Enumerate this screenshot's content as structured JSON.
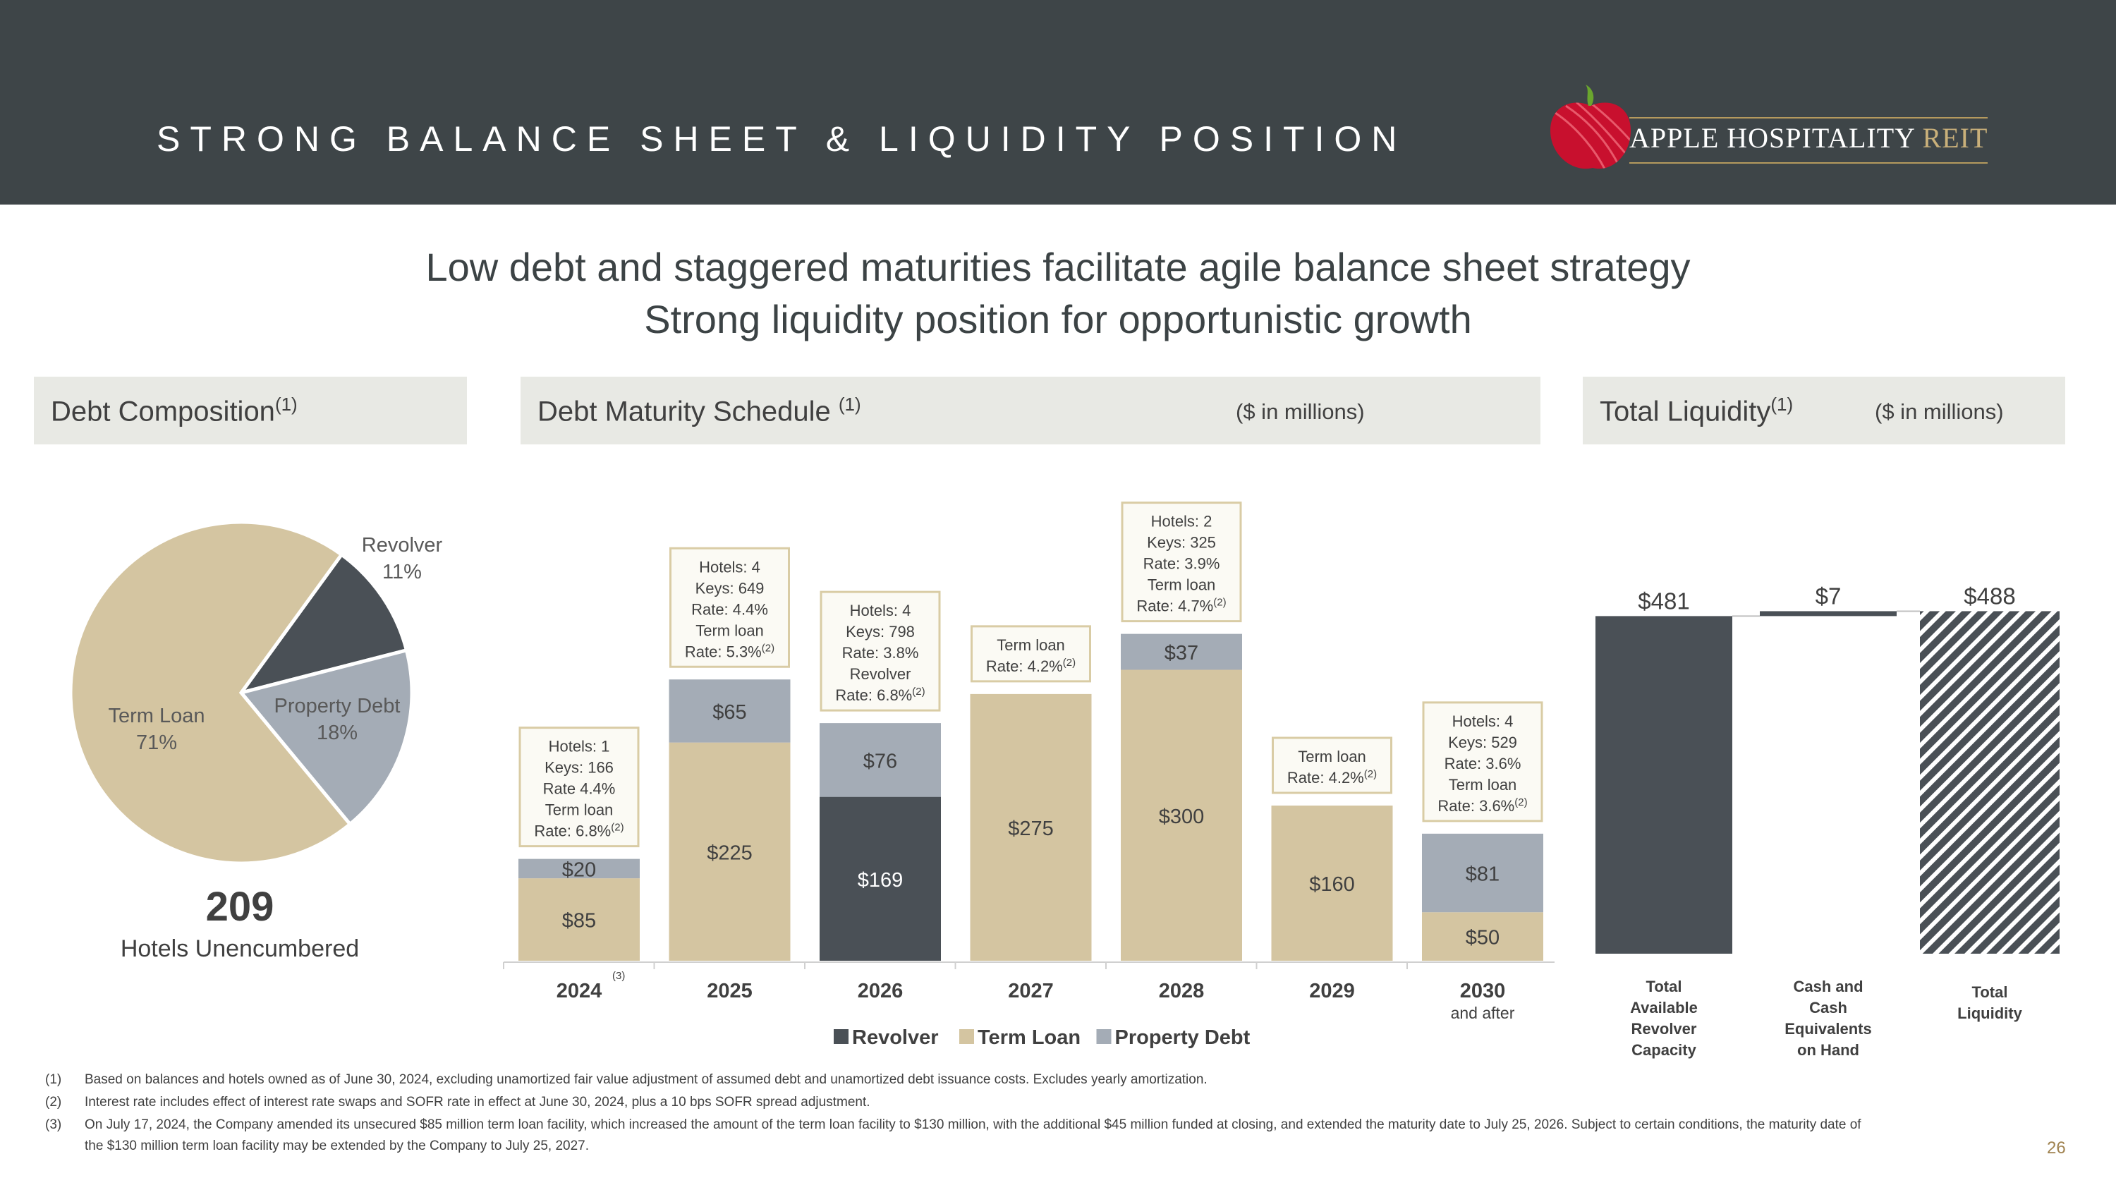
{
  "header": {
    "title": "STRONG BALANCE SHEET & LIQUIDITY POSITION",
    "logo_main": "APPLE HOSPITALITY",
    "logo_accent": "REIT"
  },
  "subtitle": {
    "line1": "Low debt and staggered maturities facilitate agile balance sheet strategy",
    "line2": "Strong liquidity position for opportunistic growth"
  },
  "panels": {
    "composition": {
      "title": "Debt Composition",
      "sup": "(1)"
    },
    "maturity": {
      "title": "Debt Maturity Schedule",
      "sup": "(1)",
      "note": "($ in millions)"
    },
    "liquidity": {
      "title": "Total Liquidity",
      "sup": "(1)",
      "note": "($ in millions)"
    }
  },
  "pie": {
    "count": "209",
    "caption": "Hotels Unencumbered"
  },
  "chart_data": [
    {
      "type": "pie",
      "title": "Debt Composition",
      "slices": [
        {
          "label": "Revolver",
          "pct_label": "11%",
          "value": 11,
          "color": "#4a5056"
        },
        {
          "label": "Property Debt",
          "pct_label": "18%",
          "value": 18,
          "color": "#a4acb6"
        },
        {
          "label": "Term Loan",
          "pct_label": "71%",
          "value": 71,
          "color": "#d4c5a1"
        }
      ]
    },
    {
      "type": "bar",
      "stacked": true,
      "title": "Debt Maturity Schedule",
      "categories": [
        "2024",
        "2025",
        "2026",
        "2027",
        "2028",
        "2029",
        "2030"
      ],
      "category_notes": {
        "2024": "(3)",
        "2030": "and after"
      },
      "ylim": [
        0,
        360
      ],
      "series": [
        {
          "name": "Revolver",
          "color": "#4a5056",
          "values": [
            0,
            0,
            169,
            0,
            0,
            0,
            0
          ],
          "labels": [
            "",
            "",
            "$169",
            "",
            "",
            "",
            ""
          ]
        },
        {
          "name": "Term Loan",
          "color": "#d4c5a1",
          "values": [
            85,
            225,
            0,
            275,
            300,
            160,
            50
          ],
          "labels": [
            "$85",
            "$225",
            "",
            "$275",
            "$300",
            "$160",
            "$50"
          ]
        },
        {
          "name": "Property Debt",
          "color": "#a4acb6",
          "values": [
            20,
            65,
            76,
            0,
            37,
            0,
            81
          ],
          "labels": [
            "$20",
            "$65",
            "$76",
            "",
            "$37",
            "",
            "$81"
          ]
        }
      ],
      "annotations": [
        [
          "Hotels: 1",
          "Keys: 166",
          "Rate 4.4%",
          "Term loan",
          "Rate: 6.8%|(2)"
        ],
        [
          "Hotels: 4",
          "Keys: 649",
          "Rate: 4.4%",
          "Term loan",
          "Rate: 5.3%|(2)"
        ],
        [
          "Hotels: 4",
          "Keys: 798",
          "Rate: 3.8%",
          "Revolver",
          "Rate: 6.8%|(2)"
        ],
        [
          "Term loan",
          "Rate: 4.2%|(2)"
        ],
        [
          "Hotels: 2",
          "Keys: 325",
          "Rate: 3.9%",
          "Term loan",
          "Rate: 4.7%|(2)"
        ],
        [
          "Term loan",
          "Rate: 4.2%|(2)"
        ],
        [
          "Hotels: 4",
          "Keys: 529",
          "Rate: 3.6%",
          "Term loan",
          "Rate: 3.6%|(2)"
        ]
      ]
    },
    {
      "type": "bar",
      "subtype": "waterfall",
      "title": "Total Liquidity",
      "categories": [
        "Total Available Revolver Capacity",
        "Cash and Cash Equivalents on Hand",
        "Total Liquidity"
      ],
      "category_lines": [
        [
          "Total",
          "Available",
          "Revolver",
          "Capacity"
        ],
        [
          "Cash and",
          "Cash",
          "Equivalents",
          "on Hand"
        ],
        [
          "Total",
          "Liquidity"
        ]
      ],
      "values": [
        481,
        7,
        488
      ],
      "labels": [
        "$481",
        "$7",
        "$488"
      ],
      "ylim": [
        0,
        500
      ]
    }
  ],
  "footnotes": [
    {
      "num": "(1)",
      "lines": [
        "Based on balances and hotels owned as of June 30, 2024, excluding unamortized fair value adjustment of assumed debt and unamortized debt issuance costs. Excludes yearly amortization."
      ]
    },
    {
      "num": "(2)",
      "lines": [
        "Interest rate includes effect of interest rate swaps and SOFR rate in effect at June 30, 2024, plus a 10 bps SOFR spread adjustment."
      ]
    },
    {
      "num": "(3)",
      "lines": [
        "On July 17, 2024, the Company amended its unsecured $85 million term loan facility, which increased the amount of the term loan facility to $130 million, with the additional $45 million funded at closing, and extended the maturity date to July 25, 2026. Subject to certain conditions, the maturity date of",
        "the $130 million term loan facility may be extended by the Company to July 25, 2027."
      ]
    }
  ],
  "page_number": "26"
}
